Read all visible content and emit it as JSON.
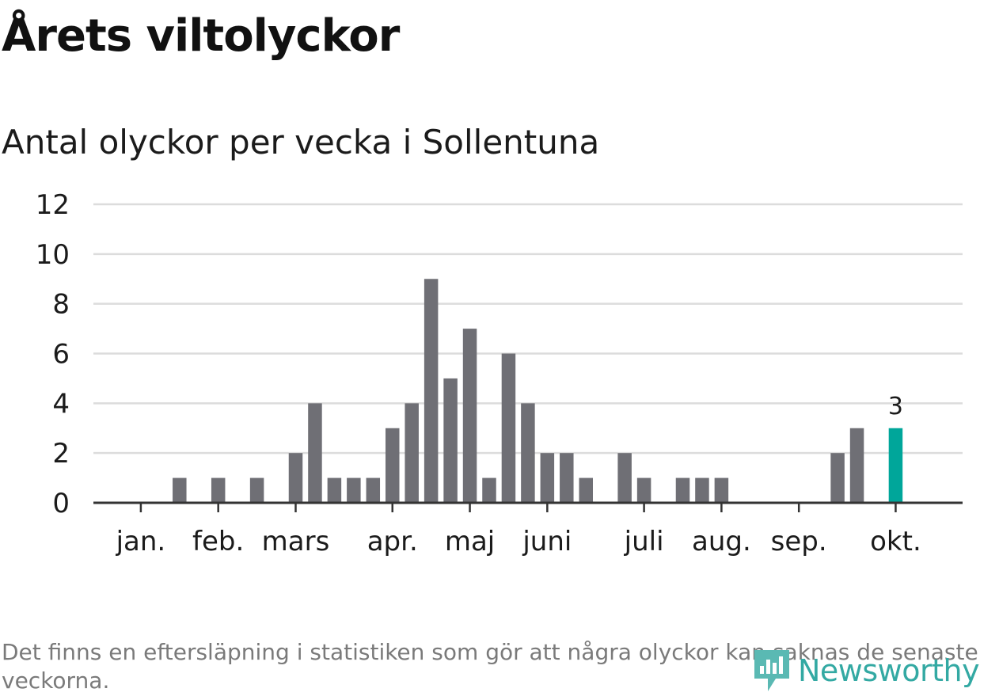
{
  "title": "Årets viltolyckor",
  "subtitle": "Antal olyckor per vecka i Sollentuna",
  "footnote": "Det finns en eftersläpning i statistiken som gör att några olyckor kan saknas de senaste veckorna.",
  "logo_text": "Newsworthy",
  "colors": {
    "bar": "#6f6f75",
    "highlight": "#00a69a",
    "grid": "#dcdcdc",
    "axis": "#333333",
    "logo": "#33a9a3"
  },
  "chart_data": {
    "type": "bar",
    "title": "Antal olyckor per vecka i Sollentuna",
    "xlabel": "",
    "ylabel": "",
    "ylim": [
      0,
      12
    ],
    "yticks": [
      0,
      2,
      4,
      6,
      8,
      10,
      12
    ],
    "grid": true,
    "weeks": [
      1,
      2,
      3,
      4,
      5,
      6,
      7,
      8,
      9,
      10,
      11,
      12,
      13,
      14,
      15,
      16,
      17,
      18,
      19,
      20,
      21,
      22,
      23,
      24,
      25,
      26,
      27,
      28,
      29,
      30,
      31,
      32,
      33,
      34,
      35,
      36,
      37,
      38,
      39,
      40,
      41,
      42,
      43
    ],
    "values": [
      0,
      0,
      0,
      0,
      1,
      0,
      1,
      0,
      1,
      0,
      2,
      4,
      1,
      1,
      1,
      3,
      4,
      9,
      5,
      7,
      1,
      6,
      4,
      2,
      2,
      1,
      0,
      2,
      1,
      0,
      1,
      1,
      1,
      0,
      0,
      0,
      0,
      0,
      2,
      3,
      0,
      3,
      0
    ],
    "highlight_week": 42,
    "highlight_label": "3",
    "month_labels": [
      {
        "label": "jan.",
        "week": 3
      },
      {
        "label": "feb.",
        "week": 7
      },
      {
        "label": "mars",
        "week": 11
      },
      {
        "label": "apr.",
        "week": 16
      },
      {
        "label": "maj",
        "week": 20
      },
      {
        "label": "juni",
        "week": 24
      },
      {
        "label": "juli",
        "week": 29
      },
      {
        "label": "aug.",
        "week": 33
      },
      {
        "label": "sep.",
        "week": 37
      },
      {
        "label": "okt.",
        "week": 42
      }
    ]
  }
}
